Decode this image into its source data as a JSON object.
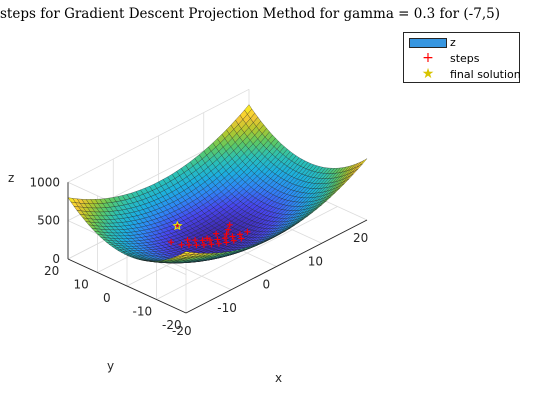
{
  "title": "steps for Gradient Descent Projection Method for gamma = 0.3 for (-7,5)",
  "legend": {
    "items": [
      {
        "label": "z",
        "kind": "surface",
        "color": "#3796e0"
      },
      {
        "label": "steps",
        "kind": "marker",
        "marker": "+",
        "color": "#ff0000"
      },
      {
        "label": "final solution",
        "kind": "marker",
        "marker": "★",
        "color": "#ffff00"
      }
    ]
  },
  "chart_data": {
    "type": "surface",
    "title": "steps for Gradient Descent Projection Method for gamma = 0.3 for (-7,5)",
    "xlabel": "x",
    "ylabel": "y",
    "zlabel": "z",
    "xlim": [
      -20,
      20
    ],
    "ylim": [
      -20,
      20
    ],
    "zlim": [
      0,
      1000
    ],
    "x_ticks": [
      -20,
      -10,
      0,
      10,
      20
    ],
    "y_ticks": [
      -20,
      -10,
      0,
      10,
      20
    ],
    "z_ticks": [
      0,
      500,
      1000
    ],
    "x_tick_labels": [
      "-20",
      "-10",
      "0",
      "10",
      "20"
    ],
    "y_tick_labels": [
      "-20",
      "-10",
      "0",
      "10",
      "20"
    ],
    "z_tick_labels": [
      "0",
      "500",
      "1000"
    ],
    "grid": true,
    "legend_position": "top-right",
    "colormap": [
      "#3e26a8",
      "#4746ef",
      "#2e87f7",
      "#1cafdf",
      "#2cc1b3",
      "#5ec962",
      "#b5c82c",
      "#f9c835",
      "#f8f81d"
    ],
    "series": [
      {
        "name": "z",
        "kind": "surface",
        "x_range": [
          -20,
          20
        ],
        "y_range": [
          -20,
          20
        ],
        "grid_size": 40
      },
      {
        "name": "steps",
        "kind": "points",
        "marker": "+",
        "color": "#ff0000",
        "points": [
          [
            -7,
            5,
            90
          ],
          [
            -3,
            9,
            110
          ],
          [
            -6,
            3,
            60
          ],
          [
            -4,
            4,
            45
          ],
          [
            -5,
            2,
            45
          ],
          [
            -3,
            3,
            30
          ],
          [
            -4,
            1,
            30
          ],
          [
            -2,
            2,
            15
          ],
          [
            -3,
            0,
            20
          ],
          [
            -1,
            1,
            5
          ],
          [
            -2,
            -1,
            15
          ],
          [
            0,
            0,
            0
          ],
          [
            -1,
            -2,
            10
          ],
          [
            1,
            -1,
            5
          ],
          [
            0,
            -3,
            15
          ],
          [
            2,
            -2,
            15
          ],
          [
            1,
            -4,
            25
          ],
          [
            3,
            -3,
            30
          ],
          [
            2,
            -5,
            40
          ],
          [
            4,
            -4,
            50
          ],
          [
            -1,
            2,
            10
          ],
          [
            1,
            2,
            10
          ],
          [
            2,
            0,
            10
          ],
          [
            3,
            1,
            20
          ],
          [
            4,
            2,
            35
          ]
        ]
      },
      {
        "name": "final solution",
        "kind": "points",
        "marker": "star",
        "color": "#ffff00",
        "points": [
          [
            -3,
            9,
            110
          ]
        ]
      }
    ]
  }
}
